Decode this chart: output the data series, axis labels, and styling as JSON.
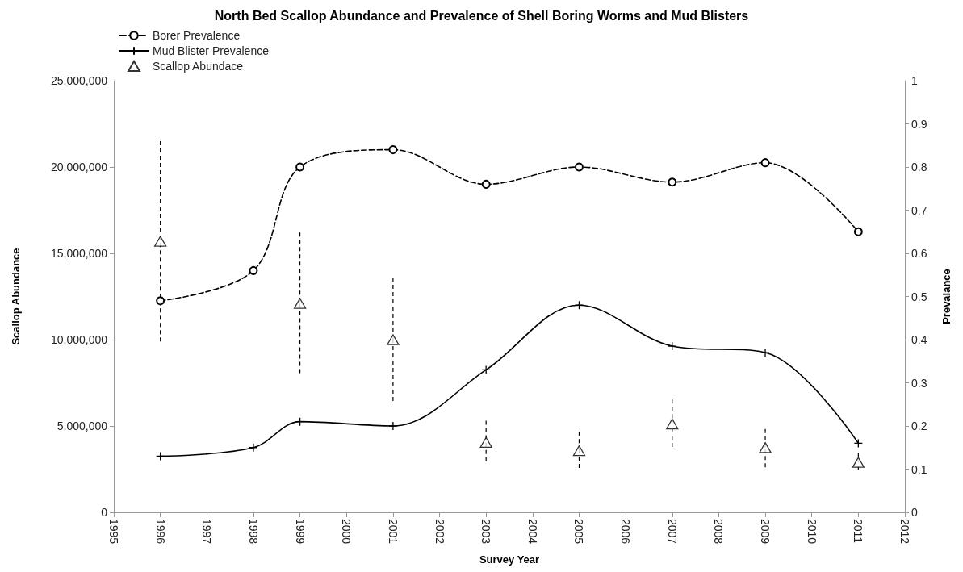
{
  "chart_data": {
    "type": "line",
    "title": "North Bed Scallop Abundance and Prevalence of Shell Boring Worms and Mud Blisters",
    "xlabel": "Survey Year",
    "ylabel": "Scallop Abundance",
    "y2label": "Prevalance",
    "x": [
      1996,
      1998,
      1999,
      2001,
      2003,
      2005,
      2007,
      2009,
      2011
    ],
    "series": [
      {
        "name": "Borer Prevalence",
        "axis": "y2",
        "color": "#000000",
        "marker": "circle",
        "line_style": "dashed",
        "values": [
          0.49,
          0.56,
          0.8,
          0.84,
          0.76,
          0.8,
          0.765,
          0.81,
          0.65
        ]
      },
      {
        "name": "Mud Blister Prevalence",
        "axis": "y2",
        "color": "#000000",
        "marker": "cross",
        "line_style": "solid",
        "values": [
          0.13,
          0.15,
          0.21,
          0.2,
          0.33,
          0.48,
          0.385,
          0.37,
          0.16
        ]
      },
      {
        "name": "Scallop Abundace",
        "type": "scatter",
        "color": "#000000",
        "marker": "triangle",
        "values": [
          15700000,
          12100000,
          10000000,
          4050000,
          3570000,
          5120000,
          3750000,
          2890000
        ],
        "x": [
          1996,
          1999,
          2001,
          2003,
          2005,
          2007,
          2009,
          2011
        ],
        "errors": [
          [
            9900000,
            21500000
          ],
          [
            8060000,
            16200000
          ],
          [
            6450000,
            13600000
          ],
          [
            2960000,
            5300000
          ],
          [
            2570000,
            4660000
          ],
          [
            3790000,
            6530000
          ],
          [
            2610000,
            4830000
          ],
          [
            2480000,
            3450000
          ]
        ]
      }
    ],
    "xlim": [
      1995,
      2012
    ],
    "xticks": [
      1995,
      1996,
      1997,
      1998,
      1999,
      2000,
      2001,
      2002,
      2003,
      2004,
      2005,
      2006,
      2007,
      2008,
      2009,
      2010,
      2011,
      2012
    ],
    "ylim": [
      0,
      25000000
    ],
    "yticks": [
      0,
      {
        "value": 5000000,
        "label": "5,000,000"
      },
      {
        "value": 10000000,
        "label": "10,000,000"
      },
      {
        "value": 15000000,
        "label": "15,000,000"
      },
      {
        "value": 20000000,
        "label": "20,000,000"
      },
      {
        "value": 25000000,
        "label": "25,000,000"
      }
    ],
    "y2lim": [
      0,
      1
    ],
    "y2ticks": [
      0,
      0.1,
      0.2,
      0.3,
      0.4,
      0.5,
      0.6,
      0.7,
      0.8,
      0.9,
      1
    ],
    "grid": false,
    "legend": "top left"
  }
}
